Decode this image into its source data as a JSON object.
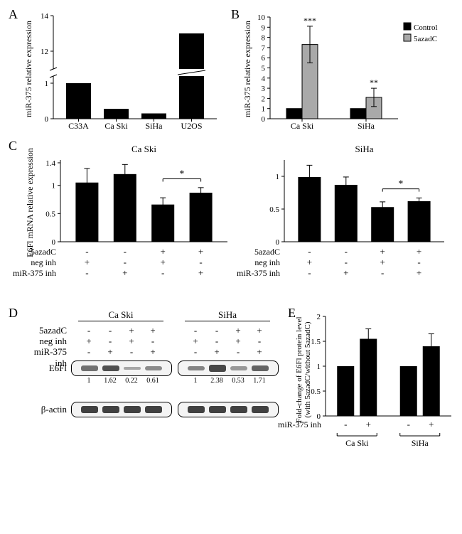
{
  "panelA": {
    "label": "A",
    "type": "bar",
    "ylabel": "miR-375 relative expression",
    "categories": [
      "C33A",
      "Ca Ski",
      "SiHa",
      "U2OS"
    ],
    "values": [
      1.0,
      0.28,
      0.15,
      13
    ],
    "bar_color": "#000000",
    "yticks_lower": [
      0,
      1
    ],
    "yticks_upper": [
      12,
      14
    ],
    "break_lower_max": 1.2,
    "break_upper_min": 11,
    "break_upper_max": 14,
    "label_fontsize": 12
  },
  "panelB": {
    "label": "B",
    "type": "bar-grouped",
    "ylabel": "miR-375 relative expression",
    "categories": [
      "Ca Ski",
      "SiHa"
    ],
    "series": [
      {
        "name": "Control",
        "color": "#000000",
        "values": [
          1.0,
          1.0
        ]
      },
      {
        "name": "5azadC",
        "color": "#a9a9a9",
        "values": [
          7.3,
          2.1
        ]
      }
    ],
    "errors": [
      {
        "values": [
          0,
          0
        ]
      },
      {
        "values": [
          1.8,
          0.9
        ]
      }
    ],
    "sig": [
      "***",
      "**"
    ],
    "yticks": [
      0,
      1,
      2,
      3,
      4,
      5,
      6,
      7,
      8,
      9,
      10
    ],
    "ylim": [
      0,
      10
    ],
    "label_fontsize": 12
  },
  "panelC": {
    "label": "C",
    "type": "bar",
    "ylabel": "E6Fl mRNA relative expression",
    "rows": [
      "5azadC",
      "neg inh",
      "miR-375 inh"
    ],
    "row_matrix": [
      [
        "-",
        "-",
        "+",
        "+"
      ],
      [
        "+",
        "-",
        "+",
        "-"
      ],
      [
        "-",
        "+",
        "-",
        "+"
      ]
    ],
    "sub": [
      {
        "title": "Ca Ski",
        "values": [
          1.05,
          1.2,
          0.66,
          0.87
        ],
        "errors": [
          0.25,
          0.17,
          0.12,
          0.09
        ],
        "sig_from": 2,
        "sig_to": 3,
        "sig_label": "*",
        "yticks": [
          0,
          0.5,
          1,
          1.4
        ],
        "ylim": [
          0,
          1.45
        ]
      },
      {
        "title": "SiHa",
        "values": [
          0.99,
          0.87,
          0.53,
          0.62
        ],
        "errors": [
          0.18,
          0.12,
          0.08,
          0.05
        ],
        "sig_from": 2,
        "sig_to": 3,
        "sig_label": "*",
        "yticks": [
          0,
          0.5,
          1
        ],
        "ylim": [
          0,
          1.25
        ]
      }
    ],
    "bar_color": "#000000"
  },
  "panelD": {
    "label": "D",
    "rows": [
      "5azadC",
      "neg inh",
      "miR-375 inh"
    ],
    "row_matrix": [
      [
        "-",
        "-",
        "+",
        "+"
      ],
      [
        "+",
        "-",
        "+",
        "-"
      ],
      [
        "-",
        "+",
        "-",
        "+"
      ]
    ],
    "sub": [
      {
        "title": "Ca Ski",
        "intensities": [
          "1",
          "1.62",
          "0.22",
          "0.61"
        ],
        "band_intensity": [
          0.55,
          0.8,
          0.15,
          0.35
        ]
      },
      {
        "title": "SiHa",
        "intensities": [
          "1",
          "2.38",
          "0.53",
          "1.71"
        ],
        "band_intensity": [
          0.4,
          0.85,
          0.25,
          0.65
        ]
      }
    ],
    "proteins": [
      "E6Fl",
      "β-actin"
    ]
  },
  "panelE": {
    "label": "E",
    "type": "bar",
    "ylabel": "Fold-change of E6Fl protein level\n(with 5azadC/without 5azadC)",
    "categories": [
      "Ca Ski",
      "SiHa"
    ],
    "xrow_label": "miR-375 inh",
    "xrow": [
      "-",
      "+",
      "-",
      "+"
    ],
    "values": [
      1.0,
      1.55,
      1.0,
      1.4
    ],
    "errors": [
      0,
      0.2,
      0,
      0.25
    ],
    "yticks": [
      0,
      0.5,
      1,
      1.5,
      2
    ],
    "ylim": [
      0,
      2
    ],
    "bar_color": "#000000"
  }
}
